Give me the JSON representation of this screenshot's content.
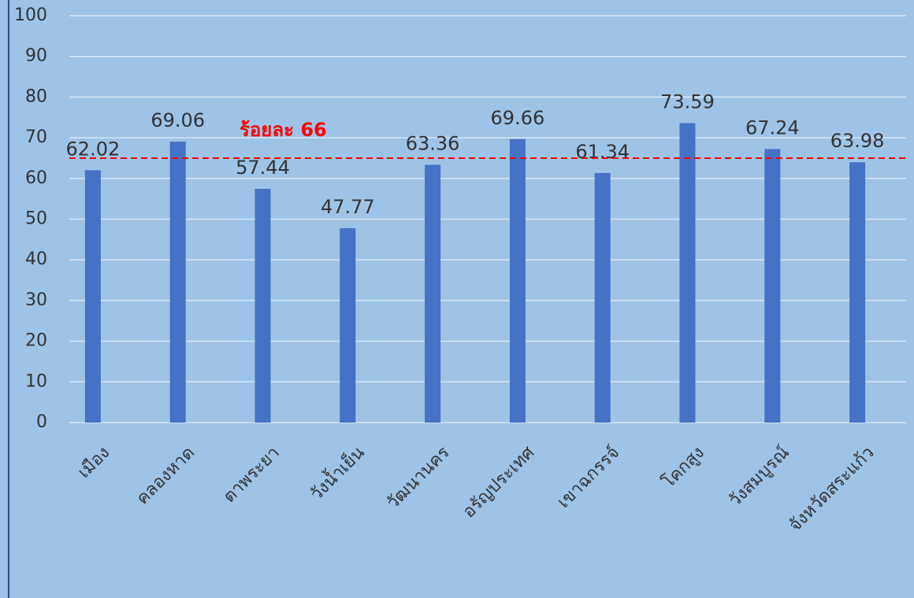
{
  "chart_data": {
    "type": "bar",
    "categories": [
      "เมือง",
      "คลองหาด",
      "ตาพระยา",
      "วังน้ำเย็น",
      "วัฒนานคร",
      "อรัญประเทศ",
      "เขาฉกรรจ์",
      "โคกสูง",
      "วังสมบูรณ์",
      "จังหวัดสระแก้ว"
    ],
    "values": [
      62.02,
      69.06,
      57.44,
      47.77,
      63.36,
      69.66,
      61.34,
      73.59,
      67.24,
      63.98
    ],
    "color": "#4472c4",
    "ylim": [
      0,
      100
    ],
    "yticks": [
      0,
      10,
      20,
      30,
      40,
      50,
      60,
      70,
      80,
      90,
      100
    ],
    "grid": true,
    "reference_line": {
      "value": 65,
      "color": "#ff0000"
    },
    "annotation": "ร้อยละ 66"
  }
}
